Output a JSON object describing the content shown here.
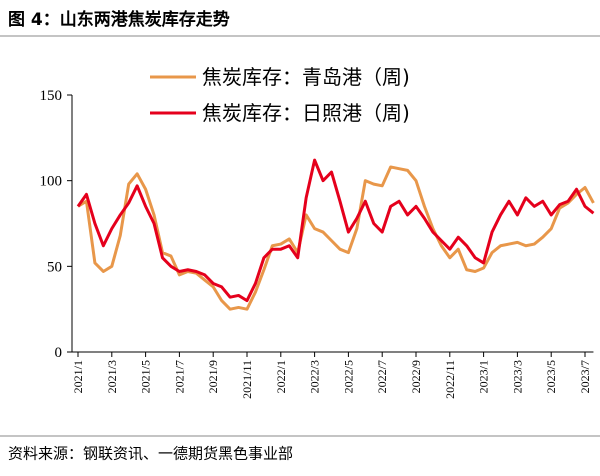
{
  "chart_data": {
    "type": "line",
    "title": "图 4：山东两港焦炭库存走势",
    "source": "资料来源：钢联资讯、一德期货黑色事业部",
    "categories": [
      "2021/1",
      null,
      null,
      null,
      "2021/3",
      null,
      null,
      null,
      "2021/5",
      null,
      null,
      null,
      "2021/7",
      null,
      null,
      null,
      "2021/9",
      null,
      null,
      null,
      "2021/11",
      null,
      null,
      null,
      "2022/1",
      null,
      null,
      null,
      "2022/3",
      null,
      null,
      null,
      "2022/5",
      null,
      null,
      null,
      "2022/7",
      null,
      null,
      null,
      "2022/9",
      null,
      null,
      null,
      "2022/11",
      null,
      null,
      null,
      "2023/1",
      null,
      null,
      null,
      "2023/3",
      null,
      null,
      null,
      "2023/5",
      null,
      null,
      null,
      "2023/7",
      null
    ],
    "series": [
      {
        "name": "焦炭库存：青岛港（周)",
        "color": "#e8974a",
        "values": [
          85,
          88,
          52,
          47,
          50,
          68,
          98,
          104,
          95,
          80,
          58,
          56,
          45,
          47,
          46,
          42,
          38,
          30,
          25,
          26,
          25,
          35,
          48,
          62,
          63,
          66,
          58,
          80,
          72,
          70,
          65,
          60,
          58,
          72,
          100,
          98,
          97,
          108,
          107,
          106,
          100,
          85,
          72,
          62,
          55,
          60,
          48,
          47,
          49,
          58,
          62,
          63,
          64,
          62,
          63,
          67,
          72,
          84,
          87,
          92,
          96,
          87
        ]
      },
      {
        "name": "焦炭库存：日照港（周)",
        "color": "#e5001c",
        "values": [
          85,
          92,
          75,
          62,
          72,
          80,
          87,
          97,
          85,
          75,
          55,
          50,
          47,
          48,
          47,
          45,
          40,
          38,
          32,
          33,
          30,
          40,
          55,
          60,
          60,
          62,
          55,
          90,
          112,
          100,
          105,
          88,
          70,
          78,
          88,
          75,
          70,
          85,
          88,
          80,
          85,
          78,
          70,
          65,
          60,
          67,
          62,
          55,
          52,
          70,
          80,
          88,
          80,
          90,
          85,
          88,
          80,
          86,
          88,
          95,
          85,
          81
        ]
      }
    ],
    "ylim": [
      0,
      150
    ],
    "yticks": [
      0,
      50,
      100,
      150
    ]
  }
}
